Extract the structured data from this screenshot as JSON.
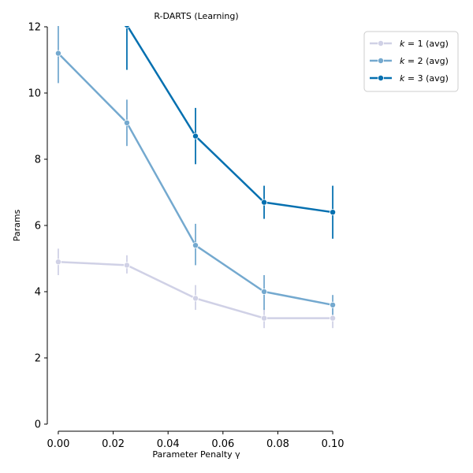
{
  "chart_data": {
    "type": "line",
    "title": "R-DARTS (Learning)",
    "xlabel": "Parameter Penalty γ",
    "ylabel": "Params",
    "xlim": [
      -0.004,
      0.104
    ],
    "ylim": [
      0,
      12
    ],
    "xticks": [
      0.0,
      0.02,
      0.04,
      0.06,
      0.08,
      0.1
    ],
    "xtick_labels": [
      "0.00",
      "0.02",
      "0.04",
      "0.06",
      "0.08",
      "0.10"
    ],
    "yticks": [
      0,
      2,
      4,
      6,
      8,
      10,
      12
    ],
    "ytick_labels": [
      "0",
      "2",
      "4",
      "6",
      "8",
      "10",
      "12"
    ],
    "grid": false,
    "legend_position": "top-right (outside plot)",
    "x": [
      0.0,
      0.025,
      0.05,
      0.075,
      0.1
    ],
    "series": [
      {
        "name": "k = 1 (avg)",
        "legend_k": "k",
        "legend_rest": " = 1 (avg)",
        "color": "#d0d1e6",
        "values": [
          4.9,
          4.8,
          3.8,
          3.2,
          3.2
        ],
        "err_low": [
          4.5,
          4.55,
          3.45,
          2.9,
          2.9
        ],
        "err_high": [
          5.3,
          5.1,
          4.2,
          3.5,
          3.5
        ]
      },
      {
        "name": "k = 2 (avg)",
        "legend_k": "k",
        "legend_rest": " = 2 (avg)",
        "color": "#74a9cf",
        "values": [
          11.2,
          9.1,
          5.4,
          4.0,
          3.6
        ],
        "err_low": [
          10.3,
          8.4,
          4.8,
          3.45,
          3.3
        ],
        "err_high": [
          12.1,
          9.8,
          6.05,
          4.5,
          3.9
        ]
      },
      {
        "name": "k = 3 (avg)",
        "legend_k": "k",
        "legend_rest": " = 3 (avg)",
        "color": "#0570b0",
        "values": [
          null,
          12.05,
          8.7,
          6.7,
          6.4
        ],
        "err_low": [
          null,
          10.7,
          7.85,
          6.2,
          5.6
        ],
        "err_high": [
          null,
          13.4,
          9.55,
          7.2,
          7.2
        ]
      }
    ]
  }
}
